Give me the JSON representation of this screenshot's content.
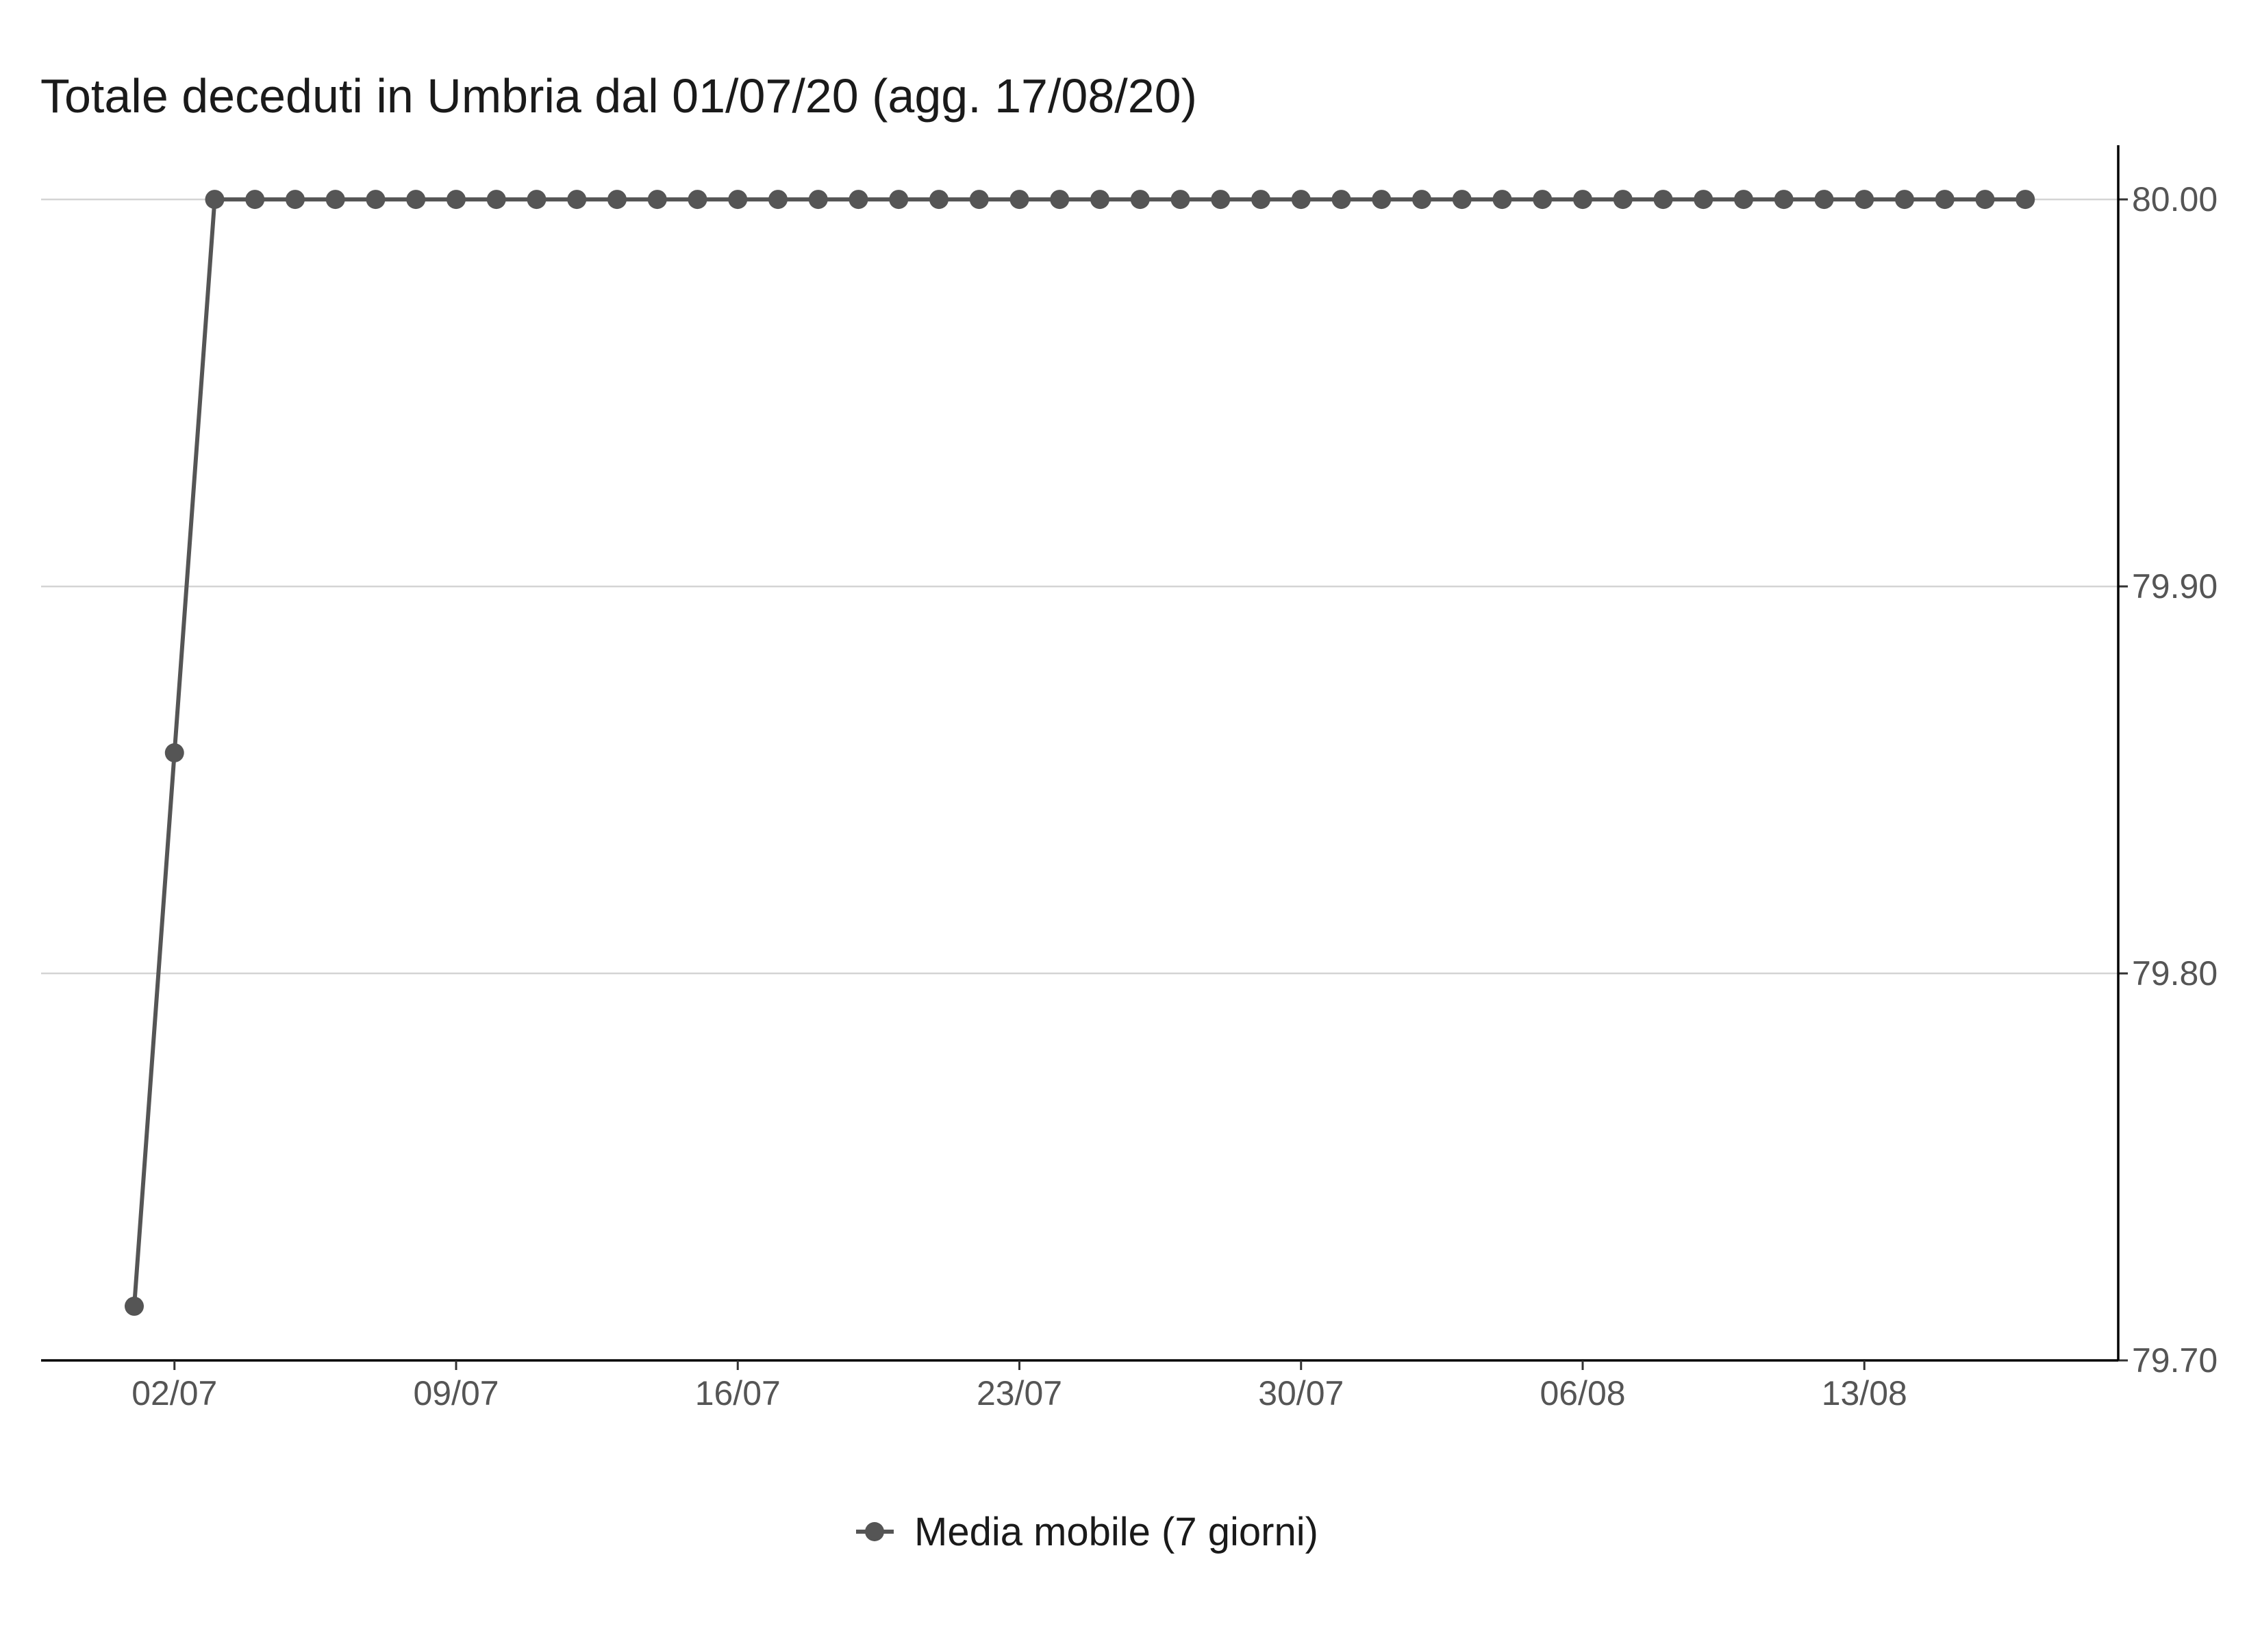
{
  "chart_data": {
    "type": "line",
    "title": "Totale deceduti in Umbria dal 01/07/20 (agg. 17/08/20)",
    "xlabel": "",
    "ylabel": "",
    "x_start": "2020-07-01",
    "x_ticks": [
      {
        "date": "2020-07-02",
        "label": "02/07"
      },
      {
        "date": "2020-07-09",
        "label": "09/07"
      },
      {
        "date": "2020-07-16",
        "label": "16/07"
      },
      {
        "date": "2020-07-23",
        "label": "23/07"
      },
      {
        "date": "2020-07-30",
        "label": "30/07"
      },
      {
        "date": "2020-08-06",
        "label": "06/08"
      },
      {
        "date": "2020-08-13",
        "label": "13/08"
      }
    ],
    "y_ticks": [
      79.7,
      79.8,
      79.9,
      80.0
    ],
    "y_tick_labels": [
      "79.70",
      "79.80",
      "79.90",
      "80.00"
    ],
    "ylim": [
      79.7,
      80.014
    ],
    "y_axis_position": "right",
    "grid": "horizontal",
    "legend_position": "bottom",
    "series": [
      {
        "name": "Media mobile (7 giorni)",
        "color": "#555555",
        "marker": "circle",
        "values": [
          79.714,
          79.857,
          80,
          80,
          80,
          80,
          80,
          80,
          80,
          80,
          80,
          80,
          80,
          80,
          80,
          80,
          80,
          80,
          80,
          80,
          80,
          80,
          80,
          80,
          80,
          80,
          80,
          80,
          80,
          80,
          80,
          80,
          80,
          80,
          80,
          80,
          80,
          80,
          80,
          80,
          80,
          80,
          80,
          80,
          80,
          80,
          80,
          80
        ]
      }
    ]
  }
}
